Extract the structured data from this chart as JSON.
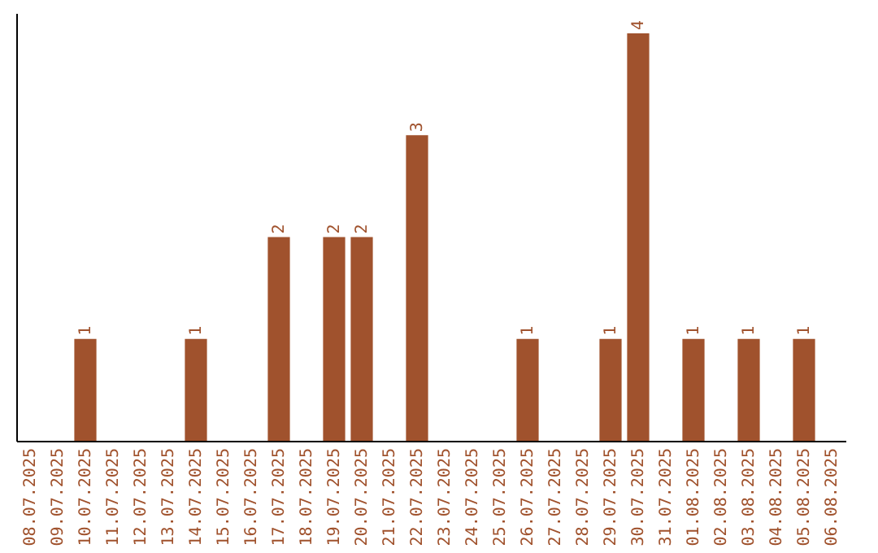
{
  "chart_data": {
    "type": "bar",
    "categories": [
      "08.07.2025",
      "09.07.2025",
      "10.07.2025",
      "11.07.2025",
      "12.07.2025",
      "13.07.2025",
      "14.07.2025",
      "15.07.2025",
      "16.07.2025",
      "17.07.2025",
      "18.07.2025",
      "19.07.2025",
      "20.07.2025",
      "21.07.2025",
      "22.07.2025",
      "23.07.2025",
      "24.07.2025",
      "25.07.2025",
      "26.07.2025",
      "27.07.2025",
      "28.07.2025",
      "29.07.2025",
      "30.07.2025",
      "31.07.2025",
      "01.08.2025",
      "02.08.2025",
      "03.08.2025",
      "04.08.2025",
      "05.08.2025",
      "06.08.2025"
    ],
    "values": [
      0,
      0,
      1,
      0,
      0,
      0,
      1,
      0,
      0,
      2,
      0,
      2,
      2,
      0,
      3,
      0,
      0,
      0,
      1,
      0,
      0,
      1,
      4,
      0,
      1,
      0,
      1,
      0,
      1,
      0
    ],
    "value_labels": [
      null,
      null,
      "1",
      null,
      null,
      null,
      "1",
      null,
      null,
      "2",
      null,
      "2",
      "2",
      null,
      "3",
      null,
      null,
      null,
      "1",
      null,
      null,
      "1",
      "4",
      null,
      "1",
      null,
      "1",
      null,
      "1",
      null
    ],
    "color": "#a0522d",
    "ylim": [
      0,
      4.2
    ],
    "tick_labels": "x"
  }
}
